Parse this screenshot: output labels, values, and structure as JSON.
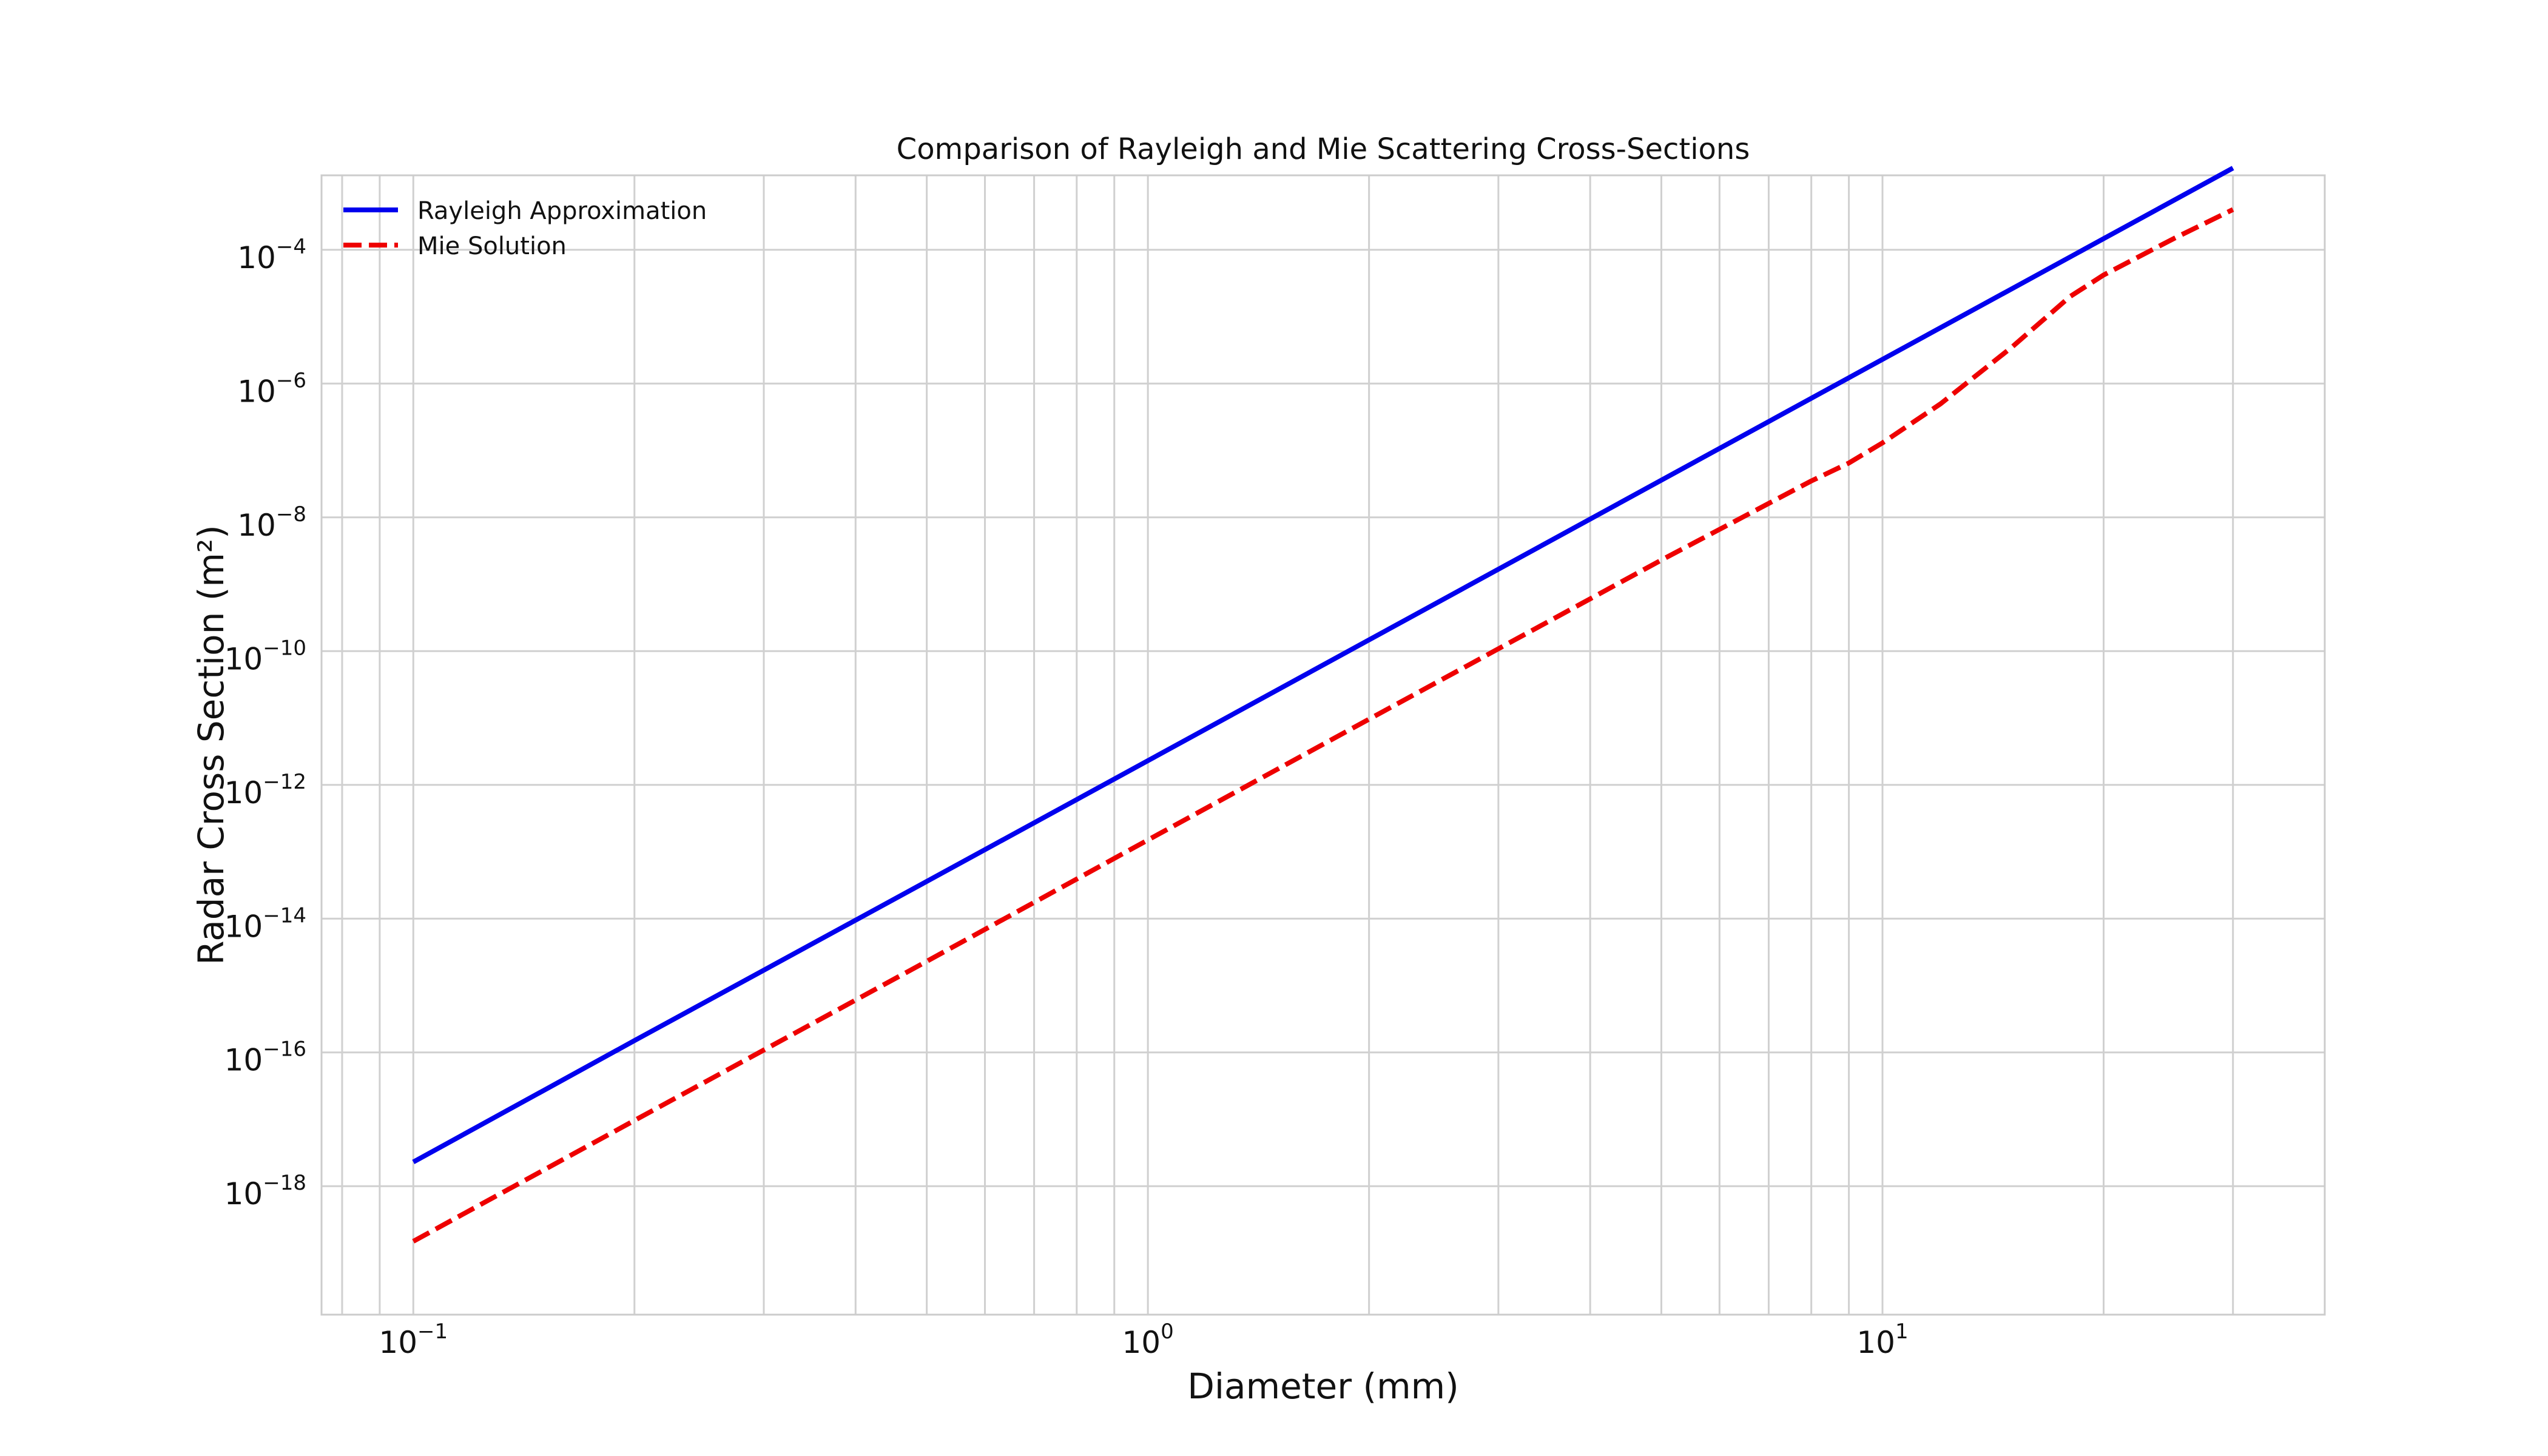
{
  "chart_data": {
    "type": "line",
    "title": "Comparison of Rayleigh and Mie Scattering Cross-Sections",
    "xlabel": "Diameter (mm)",
    "ylabel": "Radar Cross Section (m²)",
    "x_scale": "log",
    "y_scale": "log",
    "xlim": [
      0.075,
      40
    ],
    "ylim": [
      1.2e-20,
      0.0013
    ],
    "grid": true,
    "grid_minor_x": true,
    "legend_position": "top-left",
    "x_ticks": [
      {
        "value": 0.1,
        "base": "10",
        "exp": "−1"
      },
      {
        "value": 1,
        "base": "10",
        "exp": "0"
      },
      {
        "value": 10,
        "base": "10",
        "exp": "1"
      }
    ],
    "y_ticks": [
      {
        "value": 1e-18,
        "base": "10",
        "exp": "−18"
      },
      {
        "value": 1e-16,
        "base": "10",
        "exp": "−16"
      },
      {
        "value": 1e-14,
        "base": "10",
        "exp": "−14"
      },
      {
        "value": 1e-12,
        "base": "10",
        "exp": "−12"
      },
      {
        "value": 1e-10,
        "base": "10",
        "exp": "−10"
      },
      {
        "value": 1e-08,
        "base": "10",
        "exp": "−8"
      },
      {
        "value": 1e-06,
        "base": "10",
        "exp": "−6"
      },
      {
        "value": 0.0001,
        "base": "10",
        "exp": "−4"
      }
    ],
    "series": [
      {
        "name": "Rayleigh Approximation",
        "color": "#0000ee",
        "style": "solid",
        "x": [
          0.1,
          0.2,
          0.5,
          1,
          2,
          5,
          10,
          20,
          30
        ],
        "y": [
          2.3e-18,
          1.5e-16,
          3.6e-14,
          2.3e-12,
          1.47e-10,
          3.6e-08,
          2.3e-06,
          0.000147,
          0.00167
        ]
      },
      {
        "name": "Mie Solution",
        "color": "#ee0000",
        "style": "dashed",
        "x": [
          0.1,
          0.2,
          0.5,
          1,
          2,
          5,
          8,
          9,
          10,
          12,
          15,
          18,
          20,
          25,
          30
        ],
        "y": [
          1.5e-19,
          9.6e-18,
          2.3e-15,
          1.5e-13,
          9.6e-12,
          2.3e-09,
          3.5e-08,
          6.5e-08,
          1.3e-07,
          5e-07,
          3.5e-06,
          2e-05,
          4.2e-05,
          0.00015,
          0.0004
        ]
      }
    ]
  }
}
